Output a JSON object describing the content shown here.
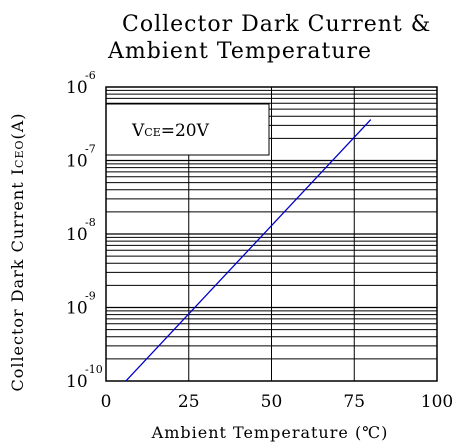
{
  "chart_data": {
    "type": "line",
    "title": [
      "Collector Dark Current &",
      "Ambient Temperature"
    ],
    "xlabel": "Ambient Temperature (℃)",
    "ylabel": {
      "prefix": "Collector   Dark Current I",
      "sub": "CEO",
      "suffix": "(A)"
    },
    "xlim": [
      0,
      100
    ],
    "ylim": [
      1e-10,
      1e-06
    ],
    "yscale": "log",
    "x_ticks": [
      "0",
      "25",
      "50",
      "75",
      "100"
    ],
    "y_ticks": [
      {
        "base": "10",
        "exp": "-10"
      },
      {
        "base": "10",
        "exp": "-9"
      },
      {
        "base": "10",
        "exp": "-8"
      },
      {
        "base": "10",
        "exp": "-7"
      },
      {
        "base": "10",
        "exp": "-6"
      }
    ],
    "grid": true,
    "annotation": {
      "prefix": "V",
      "sub": "CE",
      "suffix": "=20V"
    },
    "series": [
      {
        "color": "#0000cc",
        "points": [
          {
            "x": 6,
            "y": 1e-10
          },
          {
            "x": 80,
            "y": 3.6e-07
          }
        ]
      }
    ]
  }
}
